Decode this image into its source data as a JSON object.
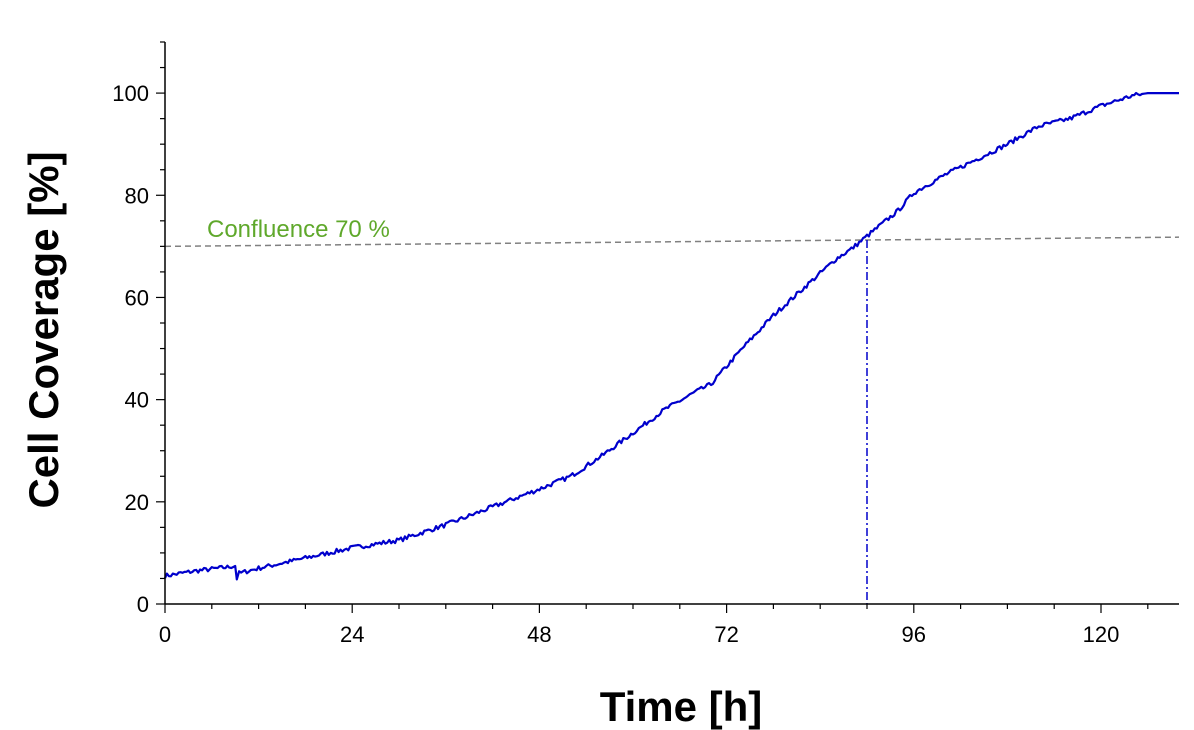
{
  "chart_data": {
    "type": "line",
    "xlabel": "Time [h]",
    "ylabel": "Cell Coverage [%]",
    "xlim": [
      0,
      130
    ],
    "ylim": [
      0,
      110
    ],
    "x_ticks": [
      0,
      24,
      48,
      72,
      96,
      120
    ],
    "y_ticks": [
      0,
      20,
      40,
      60,
      80,
      100
    ],
    "grid": false,
    "series": [
      {
        "color": "#0000cc",
        "x": [
          0,
          4,
          8,
          9,
          9.2,
          9.5,
          12,
          18,
          24,
          30,
          36,
          42,
          48,
          52,
          56,
          60,
          64,
          68,
          70,
          74,
          78,
          82,
          86,
          88,
          90,
          92,
          94,
          96,
          100,
          104,
          108,
          112,
          116,
          120,
          122,
          124,
          126,
          128,
          130
        ],
        "y": [
          5.5,
          6.5,
          7.2,
          7.5,
          5.0,
          6.0,
          7.0,
          9.0,
          11.0,
          12.5,
          15.5,
          19.0,
          22.5,
          25.0,
          29.0,
          33.5,
          38.0,
          41.5,
          43.0,
          50.0,
          56.5,
          62.0,
          67.5,
          69.5,
          72.0,
          74.5,
          77.0,
          80.5,
          84.0,
          87.0,
          90.0,
          93.5,
          95.0,
          97.5,
          98.5,
          99.5,
          100,
          100,
          100
        ]
      }
    ],
    "annotations": {
      "confluence_label": "Confluence 70 %",
      "confluence_color": "#5fa82b",
      "reference_line": {
        "x": [
          0,
          130
        ],
        "y": [
          70,
          71.8
        ],
        "color": "#808080",
        "style": "dashed"
      },
      "crossing_marker": {
        "x": 90,
        "color": "#0000cc",
        "style": "dash-dot"
      }
    }
  }
}
